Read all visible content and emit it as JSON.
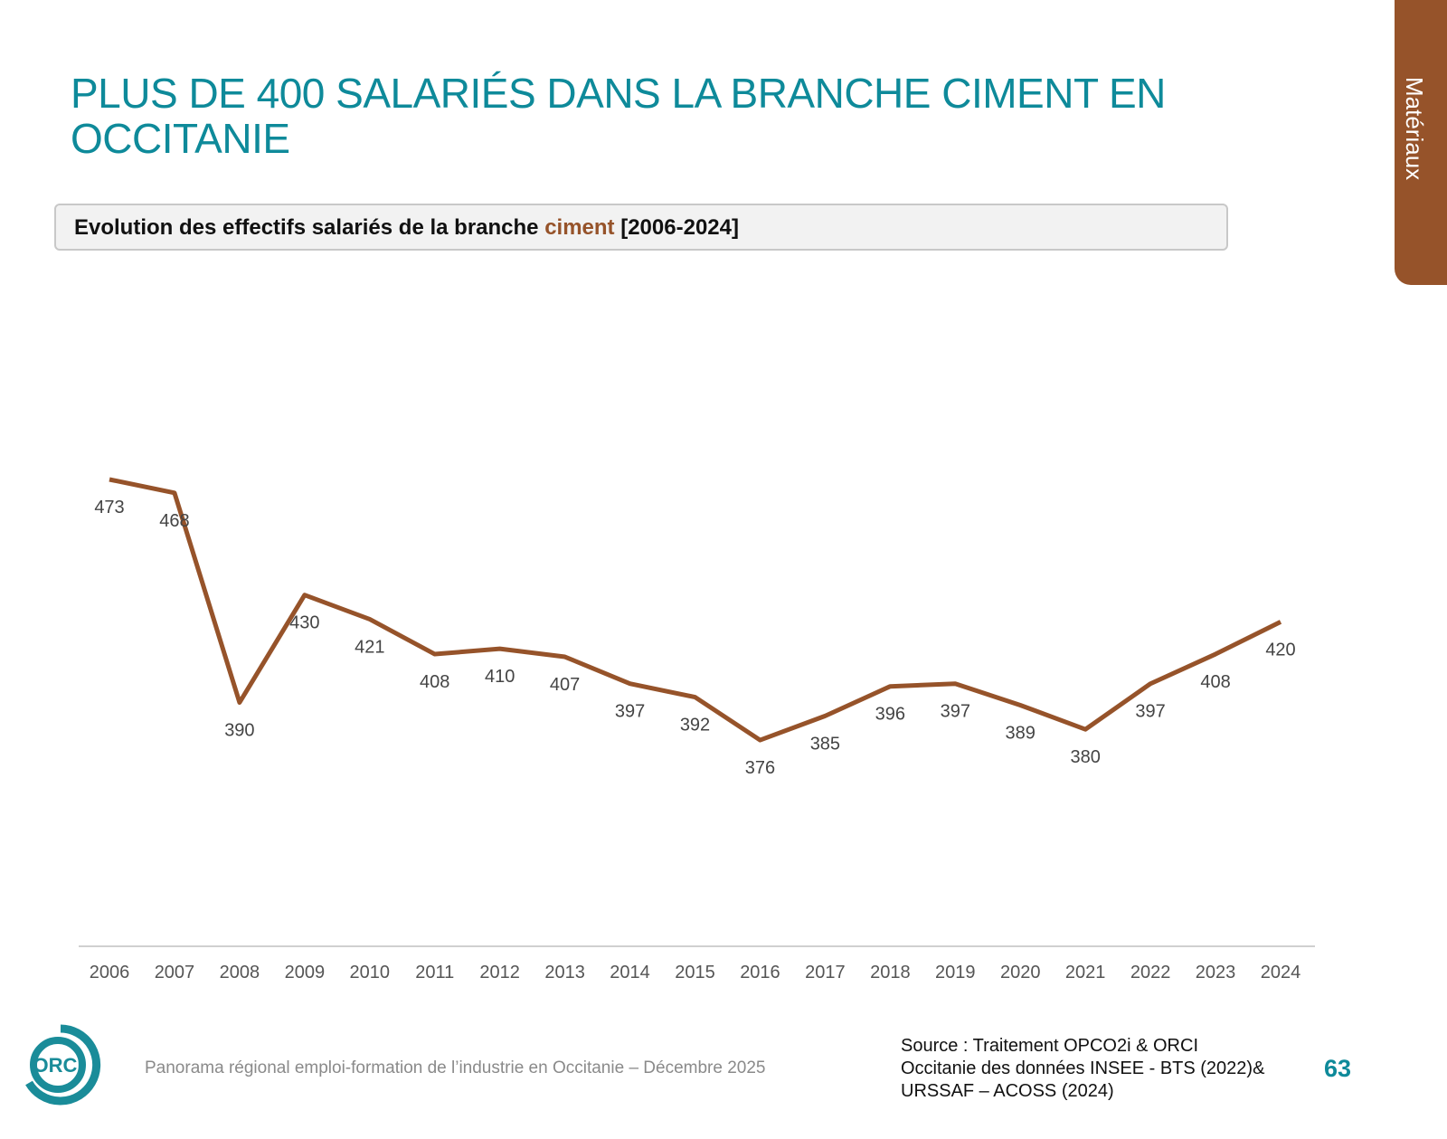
{
  "header": {
    "title": "PLUS DE 400 SALARIÉS DANS LA BRANCHE CIMENT EN OCCITANIE",
    "section_tab": "Matériaux"
  },
  "subtitle": {
    "prefix": "Evolution des effectifs salariés de la branche ",
    "highlight": "ciment",
    "suffix": " [2006-2024]"
  },
  "colors": {
    "accent": "#0e8a9a",
    "brown": "#96532a"
  },
  "chart_data": {
    "type": "line",
    "title": "",
    "xlabel": "",
    "ylabel": "",
    "categories": [
      "2006",
      "2007",
      "2008",
      "2009",
      "2010",
      "2011",
      "2012",
      "2013",
      "2014",
      "2015",
      "2016",
      "2017",
      "2018",
      "2019",
      "2020",
      "2021",
      "2022",
      "2023",
      "2024"
    ],
    "values": [
      473,
      468,
      390,
      430,
      421,
      408,
      410,
      407,
      397,
      392,
      376,
      385,
      396,
      397,
      389,
      380,
      397,
      408,
      420
    ],
    "color": "#96532a",
    "grid": false,
    "data_labels": true
  },
  "footer": {
    "text": "Panorama régional emploi-formation de l’industrie en Occitanie – Décembre 2025",
    "source_lines": [
      "Source : Traitement OPCO2i & ORCI",
      "Occitanie des données  INSEE - BTS (2022)&",
      "URSSAF – ACOSS (2024)"
    ],
    "page_number": "63",
    "logo_text": "ORCI"
  }
}
